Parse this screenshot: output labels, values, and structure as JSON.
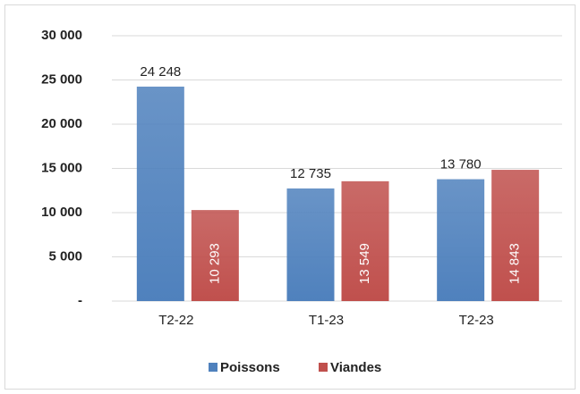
{
  "chart_data": {
    "type": "bar",
    "categories": [
      "T2-22",
      "T1-23",
      "T2-23"
    ],
    "series": [
      {
        "name": "Poissons",
        "color": "#4f81bd",
        "values": [
          24248,
          12735,
          13780
        ],
        "value_labels": [
          "24 248",
          "12 735",
          "13 780"
        ]
      },
      {
        "name": "Viandes",
        "color": "#c0504d",
        "values": [
          10293,
          13549,
          14843
        ],
        "value_labels": [
          "10 293",
          "13 549",
          "14 843"
        ]
      }
    ],
    "ylim": [
      0,
      30000
    ],
    "yticks": [
      {
        "value": 0,
        "label": "-"
      },
      {
        "value": 5000,
        "label": "5 000"
      },
      {
        "value": 10000,
        "label": "10 000"
      },
      {
        "value": 15000,
        "label": "15 000"
      },
      {
        "value": 20000,
        "label": "20 000"
      },
      {
        "value": 25000,
        "label": "25 000"
      },
      {
        "value": 30000,
        "label": "30 000"
      }
    ],
    "grid": true,
    "legend": "bottom"
  }
}
